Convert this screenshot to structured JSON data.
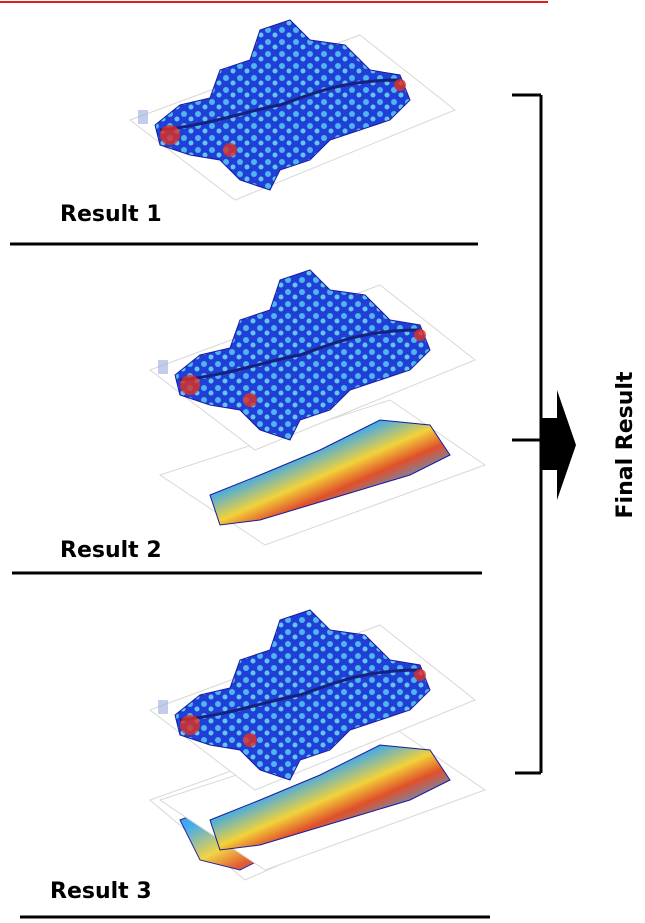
{
  "results": [
    {
      "label": "Result 1"
    },
    {
      "label": "Result 2"
    },
    {
      "label": "Result 3"
    }
  ],
  "final_label": "Final Result"
}
